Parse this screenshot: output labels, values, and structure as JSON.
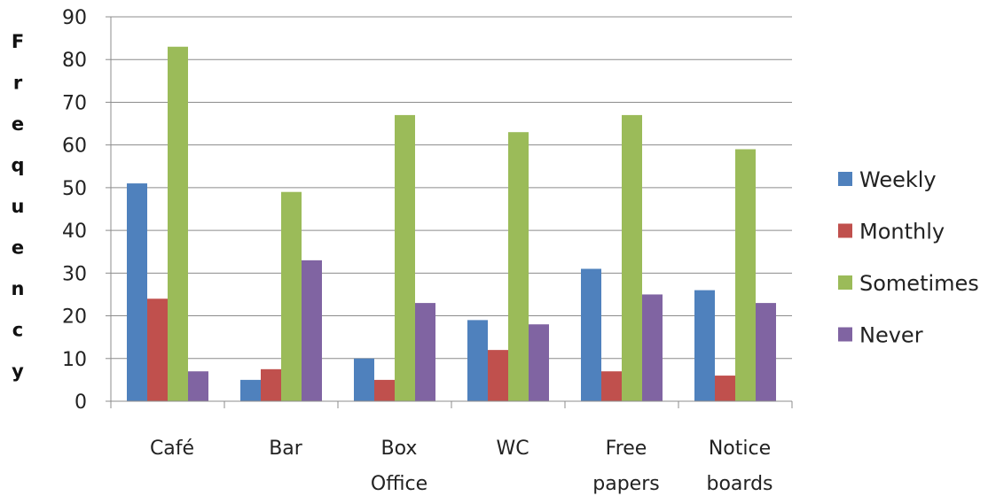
{
  "chart_data": {
    "type": "bar",
    "title": "",
    "xlabel": "",
    "ylabel": "Frequency",
    "ylim": [
      0,
      90
    ],
    "yticks": [
      0,
      10,
      20,
      30,
      40,
      50,
      60,
      70,
      80,
      90
    ],
    "grid": true,
    "legend_position": "right",
    "categories": [
      [
        "Café"
      ],
      [
        "Bar"
      ],
      [
        "Box",
        "Office"
      ],
      [
        "WC"
      ],
      [
        "Free",
        "papers"
      ],
      [
        "Notice",
        "boards"
      ]
    ],
    "series": [
      {
        "name": "Weekly",
        "color": "#4F81BD",
        "values": [
          51,
          5,
          10,
          19,
          31,
          26
        ]
      },
      {
        "name": "Monthly",
        "color": "#C0504D",
        "values": [
          24,
          7.5,
          5,
          12,
          7,
          6
        ]
      },
      {
        "name": "Sometimes",
        "color": "#9BBB59",
        "values": [
          83,
          49,
          67,
          63,
          67,
          59
        ]
      },
      {
        "name": "Never",
        "color": "#8064A2",
        "values": [
          7,
          33,
          23,
          18,
          25,
          23
        ]
      }
    ]
  }
}
